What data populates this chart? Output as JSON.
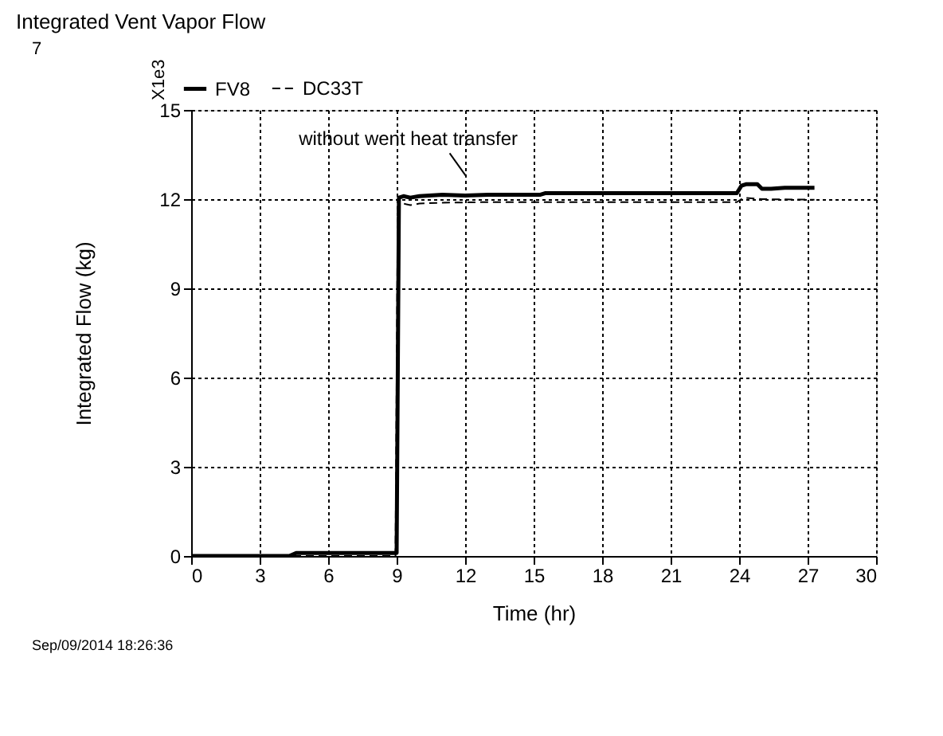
{
  "chart_data": {
    "type": "line",
    "title": "Integrated Vent Vapor Flow",
    "xlabel": "Time (hr)",
    "ylabel": "Integrated Flow (kg)",
    "series": [
      {
        "name": "FV8",
        "color": "#000000",
        "line_style": "solid",
        "x": [
          0,
          4.3,
          4.6,
          9.0,
          9.1,
          9.3,
          9.6,
          10,
          11,
          12,
          13,
          14,
          15.3,
          15.5,
          17,
          20,
          23.9,
          24.1,
          24.3,
          24.8,
          25,
          25.4,
          26,
          27.3
        ],
        "values": [
          0,
          0,
          0.1,
          0.1,
          12.05,
          12.1,
          12.05,
          12.1,
          12.15,
          12.12,
          12.15,
          12.15,
          12.15,
          12.2,
          12.2,
          12.2,
          12.2,
          12.45,
          12.5,
          12.5,
          12.35,
          12.35,
          12.38,
          12.38
        ]
      },
      {
        "name": "DC33T",
        "color": "#000000",
        "line_style": "dashed",
        "x": [
          0,
          8.95,
          9.05,
          9.3,
          9.6,
          10,
          11,
          13,
          15,
          20,
          23.9,
          24.2,
          25,
          27.3
        ],
        "values": [
          0,
          0,
          11.75,
          11.85,
          11.8,
          11.85,
          11.88,
          11.9,
          11.9,
          11.9,
          11.9,
          12.05,
          12.0,
          11.98
        ]
      }
    ],
    "xlim": [
      0,
      30
    ],
    "xticks": [
      0,
      3,
      6,
      9,
      12,
      15,
      18,
      21,
      24,
      27,
      30
    ],
    "ylim": [
      0,
      15
    ],
    "yticks": [
      0,
      3,
      6,
      9,
      12,
      15
    ],
    "grid": true,
    "legend": "top left",
    "annotations": [
      {
        "text": "without went heat transfer",
        "x": 12.3,
        "y": 12.15
      },
      "7",
      "X1e3",
      "Sep/09/2014 18:26:36"
    ]
  }
}
